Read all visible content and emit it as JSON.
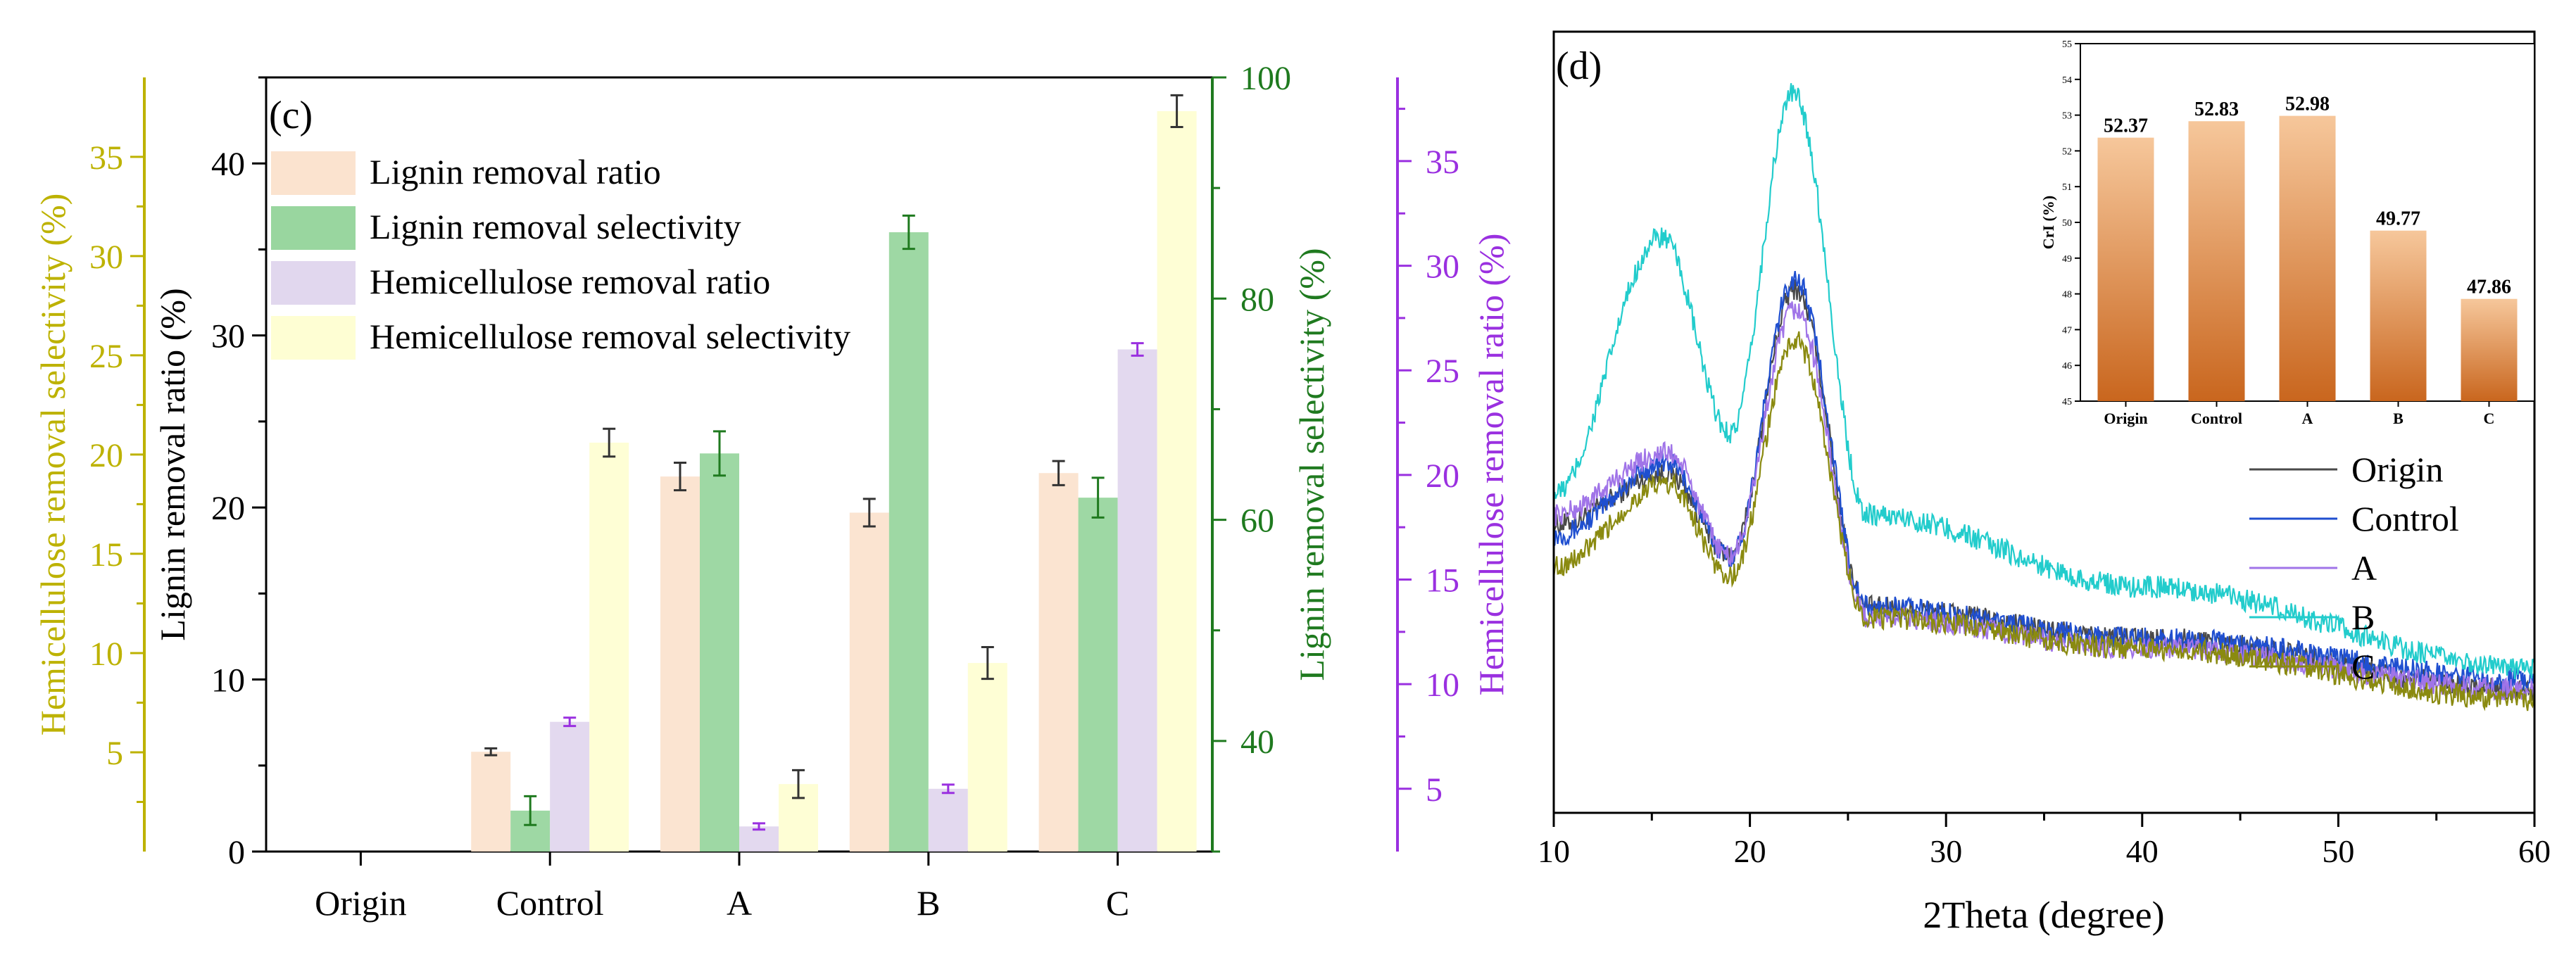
{
  "colors": {
    "lignin_ratio": "#fbe3cf",
    "lignin_selectivity": "#99d69f",
    "hemi_ratio": "#e1d7ee",
    "hemi_selectivity": "#fefed3",
    "axis_yellow": "#bdb200",
    "axis_green": "#1f7a1f",
    "axis_purple": "#9a30e0",
    "panel_label": "#e00000",
    "origin": "#4a4a4a",
    "control": "#1f4fd0",
    "A": "#a074e8",
    "B": "#22cccc",
    "C": "#8a8a10",
    "inset_bar_top": "#f6c79b",
    "inset_bar_bottom": "#c9661e"
  },
  "chart_data": [
    {
      "type": "bar",
      "panel_label": "(c)",
      "categories": [
        "Origin",
        "Control",
        "A",
        "B",
        "C"
      ],
      "series": [
        {
          "name": "Lignin removal ratio",
          "axis": "Lignin removal ratio (%)",
          "values": [
            0,
            5.8,
            21.8,
            19.7,
            22.0
          ],
          "errors": [
            0,
            0.2,
            0.8,
            0.8,
            0.7
          ]
        },
        {
          "name": "Lignin removal selectivity",
          "axis": "Lignin removal selectivity (%)",
          "values": [
            null,
            33.7,
            66.0,
            86.0,
            62.0
          ],
          "errors": [
            0,
            1.3,
            2.0,
            1.5,
            1.8
          ]
        },
        {
          "name": "Hemicellulose removal ratio",
          "axis": "Hemicellulose removal ratio (%)",
          "values": [
            null,
            8.2,
            3.2,
            5.0,
            26.0
          ],
          "errors": [
            0,
            0.2,
            0.15,
            0.2,
            0.3
          ]
        },
        {
          "name": "Hemicellulose removal selectivity",
          "axis": "Hemicellulose removal selectivity (%)",
          "values": [
            null,
            20.6,
            3.4,
            9.5,
            37.3
          ],
          "errors": [
            0,
            0.7,
            0.7,
            0.8,
            0.8
          ]
        }
      ],
      "axes": {
        "left_inner": {
          "label": "Lignin removal ratio (%)",
          "range": [
            0,
            45
          ],
          "ticks": [
            0,
            10,
            20,
            30,
            40
          ],
          "tick_labels": [
            "0",
            "10",
            "20",
            "30",
            "40"
          ]
        },
        "left_outer": {
          "label": "Hemicellulose removal selectivity (%)",
          "range": [
            0,
            39
          ],
          "ticks": [
            5,
            10,
            15,
            20,
            25,
            30,
            35
          ],
          "tick_labels": [
            "5",
            "10",
            "15",
            "20",
            "25",
            "30",
            "35"
          ]
        },
        "right_inner": {
          "label": "Lignin removal selectivity (%)",
          "range": [
            30,
            100
          ],
          "ticks": [
            40,
            60,
            80,
            100
          ],
          "tick_labels": [
            "40",
            "60",
            "80",
            "100"
          ]
        },
        "right_outer": {
          "label": "Hemicellulose removal ratio (%)",
          "range": [
            2,
            39
          ],
          "ticks": [
            5,
            10,
            15,
            20,
            25,
            30,
            35
          ],
          "tick_labels": [
            "5",
            "10",
            "15",
            "20",
            "25",
            "30",
            "35"
          ]
        }
      },
      "legend": [
        "Lignin removal ratio",
        "Lignin removal selectivity",
        "Hemicellulose removal ratio",
        "Hemicellulose removal selectivity"
      ]
    },
    {
      "type": "line",
      "panel_label": "(d)",
      "xlabel": "2Theta (degree)",
      "xlim": [
        10,
        60
      ],
      "x_ticks": [
        10,
        20,
        30,
        40,
        50,
        60
      ],
      "x_tick_labels": [
        "10",
        "20",
        "30",
        "40",
        "50",
        "60"
      ],
      "ylim": [
        0,
        38
      ],
      "series": [
        {
          "name": "Origin",
          "peak1": 15.8,
          "peak2": 22.3,
          "values_at": {
            "10": 14,
            "15.8": 16.5,
            "19": 12.5,
            "22.3": 25.5,
            "26": 10,
            "40": 8.5,
            "60": 6
          }
        },
        {
          "name": "Control",
          "peak1": 15.8,
          "peak2": 22.3,
          "values_at": {
            "10": 13.5,
            "15.8": 17,
            "19": 12.5,
            "22.3": 26,
            "26": 10,
            "40": 8.5,
            "60": 6.5
          }
        },
        {
          "name": "A",
          "peak1": 15.8,
          "peak2": 22.3,
          "values_at": {
            "10": 14.5,
            "15.8": 17.5,
            "19": 12.5,
            "22.3": 24.5,
            "26": 9.5,
            "40": 8,
            "60": 6
          }
        },
        {
          "name": "B",
          "peak1": 15.5,
          "peak2": 22.2,
          "values_at": {
            "10": 15.5,
            "15.5": 28,
            "19": 18.5,
            "22.2": 35,
            "26": 14.5,
            "40": 11,
            "60": 7
          }
        },
        {
          "name": "C",
          "peak1": 15.8,
          "peak2": 22.3,
          "values_at": {
            "10": 12,
            "15.8": 16,
            "19": 11.5,
            "22.3": 23,
            "26": 9.5,
            "40": 8,
            "60": 5.5
          }
        }
      ],
      "legend": [
        "Origin",
        "Control",
        "A",
        "B",
        "C"
      ],
      "inset": {
        "type": "bar",
        "ylabel": "CrI (%)",
        "ylim": [
          45,
          55
        ],
        "y_ticks": [
          45,
          46,
          47,
          48,
          49,
          50,
          51,
          52,
          53,
          54,
          55
        ],
        "y_tick_labels": [
          "45",
          "46",
          "47",
          "48",
          "49",
          "50",
          "51",
          "52",
          "53",
          "54",
          "55"
        ],
        "categories": [
          "Origin",
          "Control",
          "A",
          "B",
          "C"
        ],
        "values": [
          52.37,
          52.83,
          52.98,
          49.77,
          47.86
        ],
        "data_labels": [
          "52.37",
          "52.83",
          "52.98",
          "49.77",
          "47.86"
        ]
      }
    }
  ]
}
